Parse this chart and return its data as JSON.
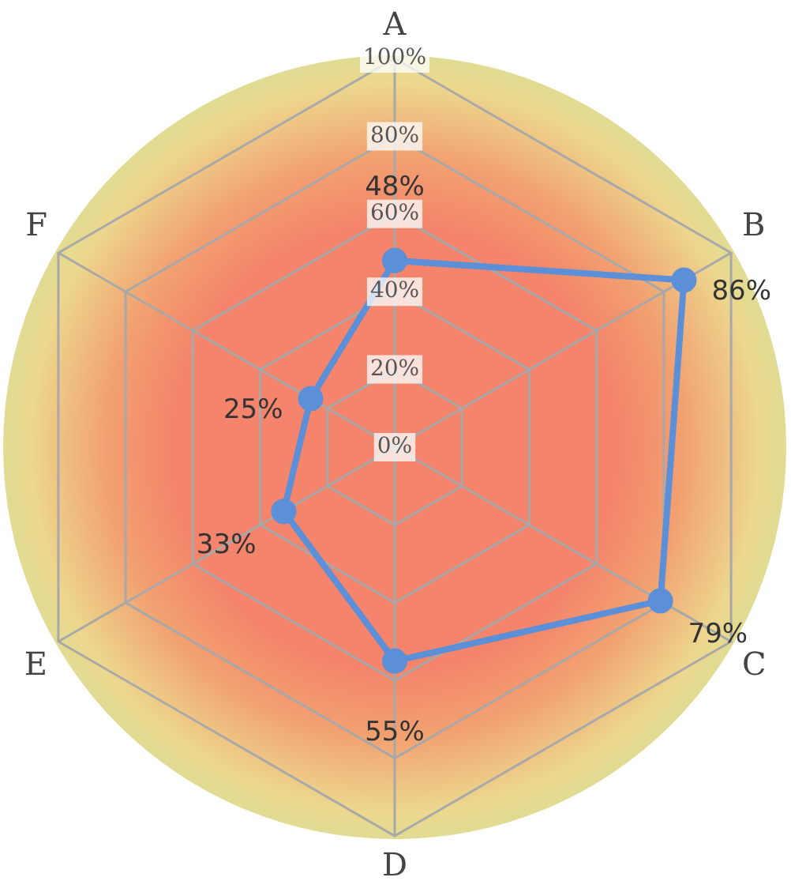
{
  "chart_data": {
    "type": "radar",
    "categories": [
      "A",
      "B",
      "C",
      "D",
      "E",
      "F"
    ],
    "series": [
      {
        "color": "#5b8fd8",
        "values": [
          48,
          86,
          79,
          55,
          33,
          25
        ],
        "value_labels": [
          "48%",
          "86%",
          "79%",
          "55%",
          "33%",
          "25%"
        ]
      }
    ],
    "ylim": [
      0,
      100
    ],
    "yticks": [
      {
        "value": 0,
        "label": "0%"
      },
      {
        "value": 20,
        "label": "20%"
      },
      {
        "value": 40,
        "label": "40%"
      },
      {
        "value": 60,
        "label": "60%"
      },
      {
        "value": 80,
        "label": "80%"
      },
      {
        "value": 100,
        "label": "100%"
      }
    ],
    "grid": true,
    "marker": "circle"
  }
}
